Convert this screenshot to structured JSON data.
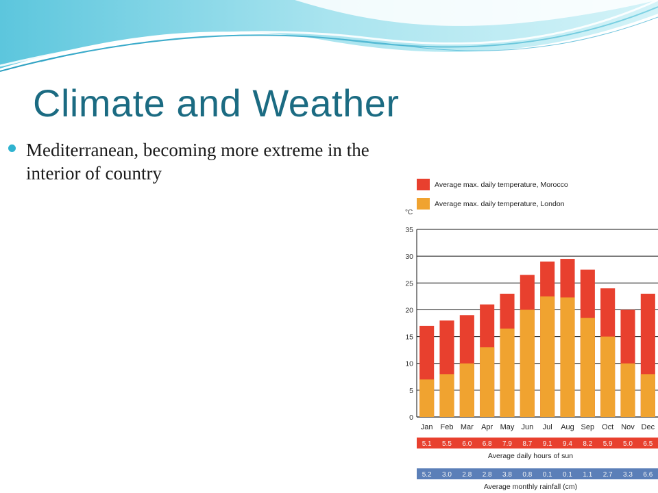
{
  "slide": {
    "title": "Climate and Weather",
    "bullet": "Mediterranean, becoming more extreme in the interior of country",
    "colors": {
      "title": "#1b6b82",
      "bullet": "#2fb3d0",
      "wave": "#8fd9e8"
    }
  },
  "chart_data": {
    "type": "bar",
    "title": "",
    "ylabel": "°C",
    "xlabel": "",
    "ylim": [
      0,
      35
    ],
    "yticks": [
      0,
      5,
      10,
      15,
      20,
      25,
      30,
      35
    ],
    "grid": true,
    "legend_position": "top",
    "categories": [
      "Jan",
      "Feb",
      "Mar",
      "Apr",
      "May",
      "Jun",
      "Jul",
      "Aug",
      "Sep",
      "Oct",
      "Nov",
      "Dec"
    ],
    "series": [
      {
        "name": "Average max. daily temperature, Morocco",
        "color": "#e8402e",
        "values": [
          17,
          18,
          19,
          21,
          23,
          26.5,
          29,
          29.5,
          27.5,
          24,
          20,
          23
        ]
      },
      {
        "name": "Average max. daily temperature, London",
        "color": "#f0a330",
        "values": [
          7,
          8,
          10,
          13,
          16.5,
          20,
          22.5,
          22.3,
          18.5,
          15,
          10,
          8
        ]
      }
    ],
    "tables": [
      {
        "label": "Average daily hours of sun",
        "color": "#e8402e",
        "values": [
          "5.1",
          "5.5",
          "6.0",
          "6.8",
          "7.9",
          "8.7",
          "9.1",
          "9.4",
          "8.2",
          "5.9",
          "5.0",
          "6.5"
        ]
      },
      {
        "label": "Average monthly rainfall (cm)",
        "color": "#5b7fb8",
        "values": [
          "5.2",
          "3.0",
          "2.8",
          "2.8",
          "3.8",
          "0.8",
          "0.1",
          "0.1",
          "1.1",
          "2.7",
          "3.3",
          "6.6"
        ]
      }
    ]
  }
}
